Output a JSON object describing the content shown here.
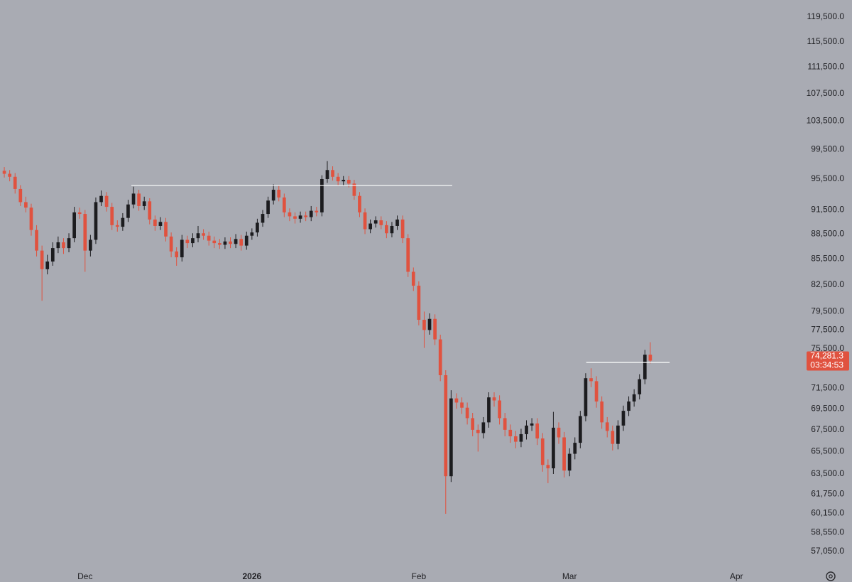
{
  "chart_data": {
    "type": "candlestick",
    "background": "#a9abb3",
    "up_color": "#1c1c1f",
    "down_color": "#e0523f",
    "log_scale": true,
    "x": [
      -15,
      -14,
      -13,
      -12,
      -11,
      -10,
      -9,
      -8,
      -7,
      -6,
      -5,
      -4,
      -3,
      -2,
      -1,
      0,
      1,
      2,
      3,
      4,
      5,
      6,
      7,
      8,
      9,
      10,
      11,
      12,
      13,
      14,
      15,
      16,
      17,
      18,
      19,
      20,
      21,
      22,
      23,
      24,
      25,
      26,
      27,
      28,
      29,
      30,
      31,
      32,
      33,
      34,
      35,
      36,
      37,
      38,
      39,
      40,
      41,
      42,
      43,
      44,
      45,
      46,
      47,
      48,
      49,
      50,
      51,
      52,
      53,
      54,
      55,
      56,
      57,
      58,
      59,
      60,
      61,
      62,
      63,
      64,
      65,
      66,
      67,
      68,
      69,
      70,
      71,
      72,
      73,
      74,
      75,
      76,
      77,
      78,
      79,
      80,
      81,
      82,
      83,
      84,
      85,
      86,
      87,
      88,
      89,
      90,
      91,
      92,
      93,
      94,
      95,
      96,
      97,
      98,
      99,
      100,
      101,
      102,
      103,
      104,
      105
    ],
    "open": [
      96600,
      96200,
      95800,
      94200,
      92500,
      91800,
      89000,
      86500,
      84300,
      85200,
      86800,
      87500,
      86800,
      88000,
      91200,
      91000,
      86500,
      87800,
      92500,
      93300,
      91900,
      89600,
      89400,
      90500,
      92200,
      93600,
      92000,
      92600,
      90300,
      89500,
      90000,
      88200,
      86400,
      85700,
      87800,
      87400,
      88000,
      88600,
      88300,
      87700,
      87400,
      87200,
      87600,
      87300,
      87900,
      87100,
      88300,
      88700,
      89900,
      91000,
      92700,
      94100,
      93100,
      91200,
      90700,
      90400,
      90800,
      90600,
      91400,
      91200,
      95500,
      96700,
      95800,
      95200,
      95400,
      94900,
      93300,
      91200,
      89100,
      89800,
      90200,
      89600,
      88600,
      89500,
      90300,
      88000,
      84000,
      82400,
      78600,
      77500,
      78700,
      76500,
      72800,
      63300,
      70500,
      70100,
      69600,
      68600,
      67500,
      67200,
      68200,
      70600,
      70300,
      68600,
      67500,
      66900,
      66400,
      67100,
      67900,
      68100,
      66700,
      64300,
      64000,
      67700,
      66800,
      63800,
      65300,
      66300,
      68800,
      72500,
      72200,
      70200,
      68200,
      67400,
      66200,
      67900,
      69300,
      70200,
      70900,
      72400,
      74900
    ],
    "high": [
      97100,
      96700,
      96300,
      94700,
      93200,
      92300,
      89600,
      87100,
      86000,
      87500,
      88200,
      88000,
      88600,
      91900,
      91800,
      91500,
      88400,
      93100,
      94000,
      93800,
      92400,
      90200,
      91100,
      92800,
      94500,
      94100,
      93200,
      93000,
      90800,
      90600,
      90500,
      88700,
      86900,
      88400,
      88300,
      88600,
      89500,
      89100,
      88800,
      88200,
      87900,
      88100,
      88100,
      88500,
      88400,
      88800,
      89200,
      90400,
      91500,
      93200,
      94800,
      94600,
      93600,
      91700,
      91200,
      91300,
      91300,
      92000,
      91900,
      96000,
      97900,
      97200,
      96300,
      95900,
      95900,
      95400,
      93800,
      91700,
      90300,
      90700,
      90700,
      90100,
      90000,
      90800,
      90800,
      88500,
      84500,
      82900,
      79500,
      79300,
      79200,
      77000,
      73300,
      71300,
      71000,
      70600,
      70100,
      69100,
      68000,
      68700,
      71100,
      71100,
      70800,
      69100,
      68000,
      67400,
      67600,
      68400,
      68600,
      68600,
      67200,
      64800,
      69200,
      68200,
      67300,
      65800,
      66800,
      69300,
      73000,
      73500,
      72700,
      70700,
      68700,
      67900,
      68400,
      69800,
      70700,
      71400,
      72900,
      75400,
      76200
    ],
    "low": [
      95700,
      95200,
      93600,
      92000,
      91200,
      88300,
      85800,
      80700,
      83700,
      84700,
      86200,
      86100,
      86300,
      87500,
      90400,
      84000,
      85800,
      87300,
      92000,
      91300,
      89000,
      88800,
      88900,
      90000,
      91700,
      91400,
      91500,
      89700,
      88900,
      89000,
      87600,
      85700,
      84700,
      85200,
      86800,
      86900,
      87500,
      87800,
      87100,
      86800,
      86700,
      86700,
      86800,
      86800,
      86500,
      86600,
      87800,
      88200,
      89400,
      90500,
      92200,
      92600,
      90600,
      90100,
      89800,
      89900,
      90100,
      90100,
      90700,
      90700,
      95000,
      95300,
      94700,
      94700,
      94400,
      92800,
      90600,
      88500,
      88600,
      89300,
      89100,
      88000,
      88100,
      89000,
      87400,
      83400,
      81800,
      78000,
      75600,
      77000,
      75900,
      72200,
      60100,
      62800,
      69500,
      69000,
      68000,
      66900,
      65500,
      66700,
      67700,
      69700,
      68000,
      66900,
      66300,
      65800,
      65900,
      66600,
      67400,
      66100,
      63700,
      62700,
      63500,
      66200,
      63200,
      63300,
      64800,
      65800,
      68300,
      71600,
      69600,
      67600,
      66800,
      65600,
      65700,
      67400,
      68800,
      69700,
      70400,
      71900,
      74000
    ],
    "close": [
      96200,
      95800,
      94200,
      92500,
      91800,
      89000,
      86500,
      84300,
      85200,
      86800,
      87500,
      86800,
      88000,
      91200,
      91000,
      86500,
      87800,
      92500,
      93300,
      91900,
      89600,
      89400,
      90500,
      92200,
      93600,
      92000,
      92600,
      90300,
      89500,
      90000,
      88200,
      86400,
      85700,
      87800,
      87400,
      88000,
      88600,
      88300,
      87700,
      87400,
      87200,
      87600,
      87300,
      87900,
      87100,
      88300,
      88700,
      89900,
      91000,
      92700,
      94100,
      93100,
      91200,
      90700,
      90400,
      90800,
      90600,
      91400,
      91200,
      95500,
      96700,
      95800,
      95200,
      95400,
      94900,
      93300,
      91200,
      89100,
      89800,
      90200,
      89600,
      88600,
      89500,
      90300,
      88000,
      84000,
      82400,
      78600,
      77500,
      78700,
      76500,
      72800,
      63300,
      70500,
      70100,
      69600,
      68600,
      67500,
      67200,
      68200,
      70600,
      70300,
      68600,
      67500,
      66900,
      66400,
      67100,
      67900,
      68100,
      66700,
      64300,
      64000,
      67700,
      66800,
      63800,
      65300,
      66300,
      68800,
      72500,
      72200,
      70200,
      68200,
      67400,
      66200,
      67900,
      69300,
      70200,
      70900,
      72400,
      74900,
      74281.3
    ],
    "last_price_label": "74,281.3",
    "countdown": "03:34:53",
    "hlines": [
      {
        "value": 94650,
        "x": [
          8.6,
          68.2
        ],
        "color": "#ffffff"
      },
      {
        "value": 74100,
        "x": [
          93.1,
          108.6
        ],
        "color": "#ffffff"
      }
    ],
    "xlim": [
      -15.8,
      133.9
    ],
    "xticks": [
      {
        "value": 0,
        "label": "Dec"
      },
      {
        "value": 31,
        "label": "2026"
      },
      {
        "value": 62,
        "label": "Feb"
      },
      {
        "value": 90,
        "label": "Mar"
      },
      {
        "value": 121,
        "label": "Apr"
      }
    ],
    "ylim": [
      55880,
      122350
    ],
    "yticks": [
      {
        "value": 119500,
        "label": "119,500.0"
      },
      {
        "value": 115500,
        "label": "115,500.0"
      },
      {
        "value": 111500,
        "label": "111,500.0"
      },
      {
        "value": 107500,
        "label": "107,500.0"
      },
      {
        "value": 103500,
        "label": "103,500.0"
      },
      {
        "value": 99500,
        "label": "99,500.0"
      },
      {
        "value": 95500,
        "label": "95,500.0"
      },
      {
        "value": 91500,
        "label": "91,500.0"
      },
      {
        "value": 88500,
        "label": "88,500.0"
      },
      {
        "value": 85500,
        "label": "85,500.0"
      },
      {
        "value": 82500,
        "label": "82,500.0"
      },
      {
        "value": 79500,
        "label": "79,500.0"
      },
      {
        "value": 77500,
        "label": "77,500.0"
      },
      {
        "value": 75500,
        "label": "75,500.0"
      },
      {
        "value": 71500,
        "label": "71,500.0"
      },
      {
        "value": 69500,
        "label": "69,500.0"
      },
      {
        "value": 67500,
        "label": "67,500.0"
      },
      {
        "value": 65500,
        "label": "65,500.0"
      },
      {
        "value": 63500,
        "label": "63,500.0"
      },
      {
        "value": 61750,
        "label": "61,750.0"
      },
      {
        "value": 60150,
        "label": "60,150.0"
      },
      {
        "value": 58550,
        "label": "58,550.0"
      },
      {
        "value": 57050,
        "label": "57,050.0"
      }
    ]
  }
}
